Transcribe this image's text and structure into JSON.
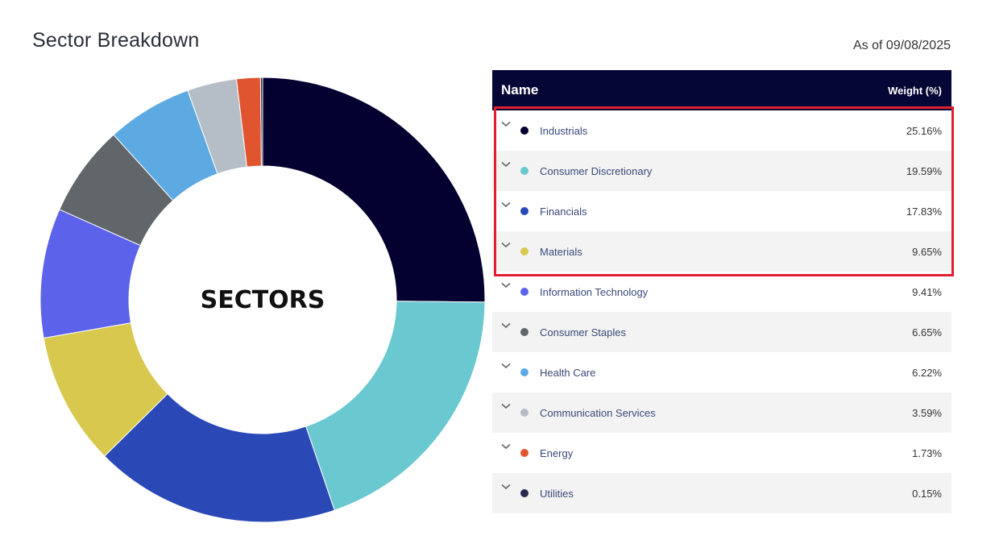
{
  "header": {
    "title": "Sector Breakdown",
    "as_of": "As of 09/08/2025"
  },
  "table": {
    "col_name": "Name",
    "col_weight": "Weight (%)"
  },
  "highlight": {
    "color": "#e0202f",
    "rows": [
      0,
      1,
      2,
      3
    ]
  },
  "chart_data": {
    "type": "pie",
    "donut": true,
    "center_label": "SECTORS",
    "slices": [
      {
        "label": "Industrials",
        "value": 25.16,
        "display": "25.16%",
        "color": "#04002f"
      },
      {
        "label": "Consumer Discretionary",
        "value": 19.59,
        "display": "19.59%",
        "color": "#6ac8d1"
      },
      {
        "label": "Financials",
        "value": 17.83,
        "display": "17.83%",
        "color": "#2a48b6"
      },
      {
        "label": "Materials",
        "value": 9.65,
        "display": "9.65%",
        "color": "#d8c84e"
      },
      {
        "label": "Information Technology",
        "value": 9.41,
        "display": "9.41%",
        "color": "#5c63ea"
      },
      {
        "label": "Consumer Staples",
        "value": 6.65,
        "display": "6.65%",
        "color": "#61666b"
      },
      {
        "label": "Health Care",
        "value": 6.22,
        "display": "6.22%",
        "color": "#5daae2"
      },
      {
        "label": "Communication Services",
        "value": 3.59,
        "display": "3.59%",
        "color": "#b5bec6"
      },
      {
        "label": "Energy",
        "value": 1.73,
        "display": "1.73%",
        "color": "#e05530"
      },
      {
        "label": "Utilities",
        "value": 0.15,
        "display": "0.15%",
        "color": "#2a2a4e"
      }
    ]
  }
}
